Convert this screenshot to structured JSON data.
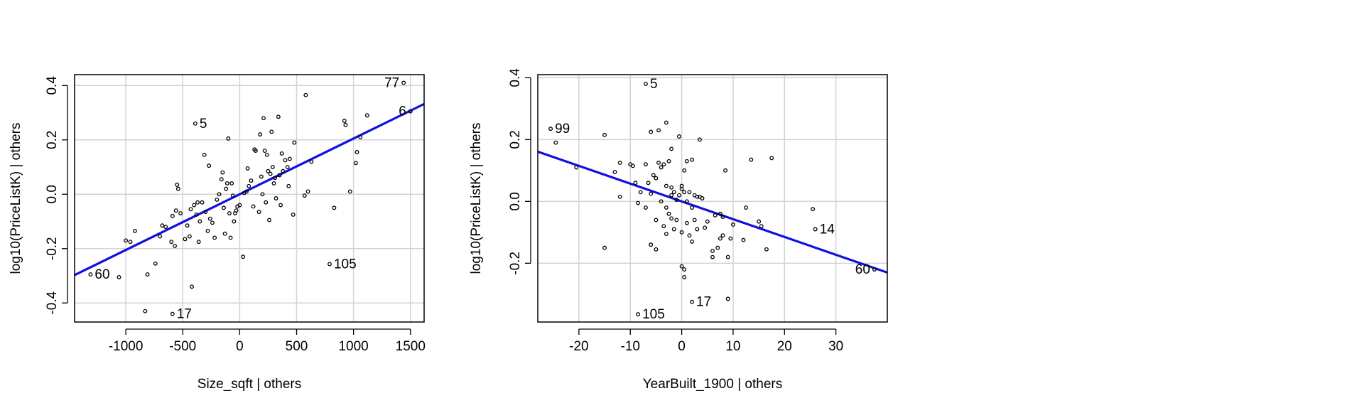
{
  "colors": {
    "fit_line": "#1010e0",
    "grid": "#d3d3d3",
    "points": "#000000",
    "frame": "#000000"
  },
  "chart_data": [
    {
      "type": "scatter",
      "title": "",
      "xlabel": "Size_sqft | others",
      "ylabel": "log10(PriceListK)  | others",
      "xlim": [
        -1450,
        1620
      ],
      "ylim": [
        -0.47,
        0.44
      ],
      "xticks": [
        -1000,
        -500,
        0,
        500,
        1000,
        1500
      ],
      "xtick_labels": [
        "-1000",
        "-500",
        "0",
        "500",
        "1000",
        "1500"
      ],
      "yticks": [
        -0.4,
        -0.2,
        0.0,
        0.2,
        0.4
      ],
      "ytick_labels": [
        "-0.4",
        "-0.2",
        "0.0",
        "0.2",
        "0.4"
      ],
      "grid": true,
      "fit_line": {
        "slope": 0.000205,
        "intercept": 0.0
      },
      "labels": [
        {
          "text": "77",
          "x": 1440,
          "y": 0.41
        },
        {
          "text": "6",
          "x": 1500,
          "y": 0.305
        },
        {
          "text": "5",
          "x": -390,
          "y": 0.26
        },
        {
          "text": "60",
          "x": -1310,
          "y": -0.295
        },
        {
          "text": "105",
          "x": 790,
          "y": -0.257
        },
        {
          "text": "17",
          "x": -590,
          "y": -0.44
        }
      ],
      "points": [
        [
          1440,
          0.41
        ],
        [
          1500,
          0.305
        ],
        [
          -390,
          0.26
        ],
        [
          -1310,
          -0.295
        ],
        [
          790,
          -0.257
        ],
        [
          -590,
          -0.44
        ],
        [
          -1060,
          -0.305
        ],
        [
          -1000,
          -0.17
        ],
        [
          -960,
          -0.175
        ],
        [
          -920,
          -0.135
        ],
        [
          -830,
          -0.43
        ],
        [
          -810,
          -0.295
        ],
        [
          -740,
          -0.255
        ],
        [
          -700,
          -0.155
        ],
        [
          -680,
          -0.115
        ],
        [
          -650,
          -0.12
        ],
        [
          -600,
          -0.175
        ],
        [
          -590,
          -0.08
        ],
        [
          -570,
          -0.19
        ],
        [
          -560,
          -0.06
        ],
        [
          -550,
          0.035
        ],
        [
          -540,
          0.02
        ],
        [
          -520,
          -0.07
        ],
        [
          -480,
          -0.165
        ],
        [
          -460,
          -0.115
        ],
        [
          -440,
          -0.155
        ],
        [
          -430,
          -0.055
        ],
        [
          -420,
          -0.34
        ],
        [
          -400,
          -0.04
        ],
        [
          -380,
          -0.075
        ],
        [
          -370,
          -0.03
        ],
        [
          -360,
          -0.175
        ],
        [
          -350,
          -0.1
        ],
        [
          -330,
          -0.03
        ],
        [
          -310,
          0.145
        ],
        [
          -300,
          -0.065
        ],
        [
          -280,
          -0.135
        ],
        [
          -270,
          0.105
        ],
        [
          -260,
          -0.09
        ],
        [
          -240,
          -0.105
        ],
        [
          -220,
          -0.16
        ],
        [
          -200,
          -0.02
        ],
        [
          -180,
          0.0
        ],
        [
          -160,
          0.055
        ],
        [
          -150,
          0.08
        ],
        [
          -140,
          -0.05
        ],
        [
          -130,
          -0.145
        ],
        [
          -120,
          0.02
        ],
        [
          -110,
          0.04
        ],
        [
          -100,
          0.205
        ],
        [
          -90,
          -0.07
        ],
        [
          -80,
          -0.16
        ],
        [
          -70,
          0.04
        ],
        [
          -60,
          -0.005
        ],
        [
          -50,
          -0.1
        ],
        [
          -40,
          -0.07
        ],
        [
          -30,
          -0.06
        ],
        [
          -20,
          -0.045
        ],
        [
          0,
          -0.04
        ],
        [
          30,
          -0.23
        ],
        [
          40,
          0.005
        ],
        [
          60,
          0.01
        ],
        [
          70,
          0.095
        ],
        [
          80,
          0.03
        ],
        [
          100,
          0.05
        ],
        [
          120,
          -0.045
        ],
        [
          130,
          0.165
        ],
        [
          140,
          0.16
        ],
        [
          170,
          -0.065
        ],
        [
          180,
          0.22
        ],
        [
          190,
          0.065
        ],
        [
          200,
          0.0
        ],
        [
          210,
          0.28
        ],
        [
          220,
          0.16
        ],
        [
          230,
          -0.03
        ],
        [
          240,
          0.145
        ],
        [
          250,
          0.085
        ],
        [
          260,
          -0.095
        ],
        [
          270,
          0.075
        ],
        [
          280,
          0.23
        ],
        [
          290,
          0.1
        ],
        [
          300,
          0.04
        ],
        [
          310,
          0.06
        ],
        [
          320,
          -0.015
        ],
        [
          340,
          0.285
        ],
        [
          350,
          0.07
        ],
        [
          360,
          -0.04
        ],
        [
          370,
          0.15
        ],
        [
          380,
          0.085
        ],
        [
          400,
          0.125
        ],
        [
          420,
          0.1
        ],
        [
          430,
          0.03
        ],
        [
          440,
          0.13
        ],
        [
          470,
          -0.075
        ],
        [
          480,
          0.19
        ],
        [
          570,
          -0.005
        ],
        [
          580,
          0.365
        ],
        [
          600,
          0.01
        ],
        [
          630,
          0.12
        ],
        [
          830,
          -0.05
        ],
        [
          920,
          0.27
        ],
        [
          930,
          0.255
        ],
        [
          970,
          0.01
        ],
        [
          1020,
          0.115
        ],
        [
          1030,
          0.155
        ],
        [
          1060,
          0.21
        ],
        [
          1120,
          0.29
        ]
      ]
    },
    {
      "type": "scatter",
      "title": "",
      "xlabel": "YearBuilt_1900 | others",
      "ylabel": "log10(PriceListK)  | others",
      "xlim": [
        -28,
        40
      ],
      "ylim": [
        -0.39,
        0.41
      ],
      "xticks": [
        -20,
        -10,
        0,
        10,
        20,
        30
      ],
      "xtick_labels": [
        "-20",
        "-10",
        "0",
        "10",
        "20",
        "30"
      ],
      "yticks": [
        -0.2,
        0.0,
        0.2,
        0.4
      ],
      "ytick_labels": [
        "-0.2",
        "0.0",
        "0.2",
        "0.4"
      ],
      "grid": true,
      "fit_line": {
        "slope": -0.00575,
        "intercept": 0.0
      },
      "labels": [
        {
          "text": "5",
          "x": -7,
          "y": 0.38
        },
        {
          "text": "99",
          "x": -25.5,
          "y": 0.235
        },
        {
          "text": "14",
          "x": 26,
          "y": -0.09
        },
        {
          "text": "60",
          "x": 37.5,
          "y": -0.22
        },
        {
          "text": "105",
          "x": -8.5,
          "y": -0.365
        },
        {
          "text": "17",
          "x": 2,
          "y": -0.325
        }
      ],
      "points": [
        [
          -7,
          0.38
        ],
        [
          -25.5,
          0.235
        ],
        [
          26,
          -0.09
        ],
        [
          37.5,
          -0.22
        ],
        [
          -8.5,
          -0.365
        ],
        [
          2,
          -0.325
        ],
        [
          -24.5,
          0.19
        ],
        [
          -20.5,
          0.11
        ],
        [
          -15,
          0.215
        ],
        [
          -15,
          -0.15
        ],
        [
          -13,
          0.095
        ],
        [
          -12,
          0.125
        ],
        [
          -12,
          0.015
        ],
        [
          -10,
          0.12
        ],
        [
          -9.5,
          0.115
        ],
        [
          -9,
          0.06
        ],
        [
          -8.5,
          -0.005
        ],
        [
          -8,
          0.03
        ],
        [
          -7,
          0.12
        ],
        [
          -7,
          -0.02
        ],
        [
          -6.5,
          0.06
        ],
        [
          -6,
          0.225
        ],
        [
          -6,
          0.025
        ],
        [
          -6,
          -0.14
        ],
        [
          -5.5,
          0.085
        ],
        [
          -5,
          0.075
        ],
        [
          -5,
          -0.06
        ],
        [
          -5,
          -0.155
        ],
        [
          -4.5,
          0.23
        ],
        [
          -4.5,
          0.125
        ],
        [
          -4,
          0.11
        ],
        [
          -4,
          0.0
        ],
        [
          -3.5,
          0.12
        ],
        [
          -3.5,
          -0.08
        ],
        [
          -3,
          0.255
        ],
        [
          -3,
          0.05
        ],
        [
          -3,
          -0.02
        ],
        [
          -3,
          -0.105
        ],
        [
          -2.5,
          0.13
        ],
        [
          -2.5,
          -0.04
        ],
        [
          -2,
          0.17
        ],
        [
          -2,
          0.045
        ],
        [
          -2,
          0.02
        ],
        [
          -2,
          -0.055
        ],
        [
          -1.5,
          0.03
        ],
        [
          -1.5,
          -0.09
        ],
        [
          -1,
          0.005
        ],
        [
          -1,
          -0.06
        ],
        [
          -0.5,
          0.21
        ],
        [
          -0.5,
          0.02
        ],
        [
          0,
          0.05
        ],
        [
          0,
          0.04
        ],
        [
          0,
          -0.1
        ],
        [
          0,
          -0.21
        ],
        [
          0.5,
          0.1
        ],
        [
          0.5,
          0.03
        ],
        [
          0.5,
          -0.22
        ],
        [
          0.5,
          -0.245
        ],
        [
          1,
          0.13
        ],
        [
          1,
          0.0
        ],
        [
          1,
          -0.07
        ],
        [
          1.5,
          0.03
        ],
        [
          1.5,
          -0.11
        ],
        [
          2,
          0.135
        ],
        [
          2,
          -0.02
        ],
        [
          2,
          -0.13
        ],
        [
          2.5,
          0.02
        ],
        [
          2.5,
          -0.06
        ],
        [
          3,
          0.015
        ],
        [
          3,
          -0.09
        ],
        [
          3.5,
          0.2
        ],
        [
          3.5,
          0.015
        ],
        [
          4,
          0.01
        ],
        [
          4.5,
          -0.085
        ],
        [
          5,
          -0.065
        ],
        [
          6,
          -0.18
        ],
        [
          6,
          -0.16
        ],
        [
          6.5,
          -0.045
        ],
        [
          7,
          -0.15
        ],
        [
          7.5,
          -0.12
        ],
        [
          7.5,
          -0.04
        ],
        [
          8,
          -0.05
        ],
        [
          8,
          -0.11
        ],
        [
          8.5,
          0.1
        ],
        [
          9,
          -0.315
        ],
        [
          9,
          -0.18
        ],
        [
          9.5,
          -0.12
        ],
        [
          10,
          -0.075
        ],
        [
          12,
          -0.125
        ],
        [
          12.5,
          -0.02
        ],
        [
          13.5,
          0.135
        ],
        [
          15,
          -0.065
        ],
        [
          15.5,
          -0.08
        ],
        [
          16.5,
          -0.155
        ],
        [
          17.5,
          0.14
        ],
        [
          25.5,
          -0.025
        ]
      ]
    }
  ]
}
